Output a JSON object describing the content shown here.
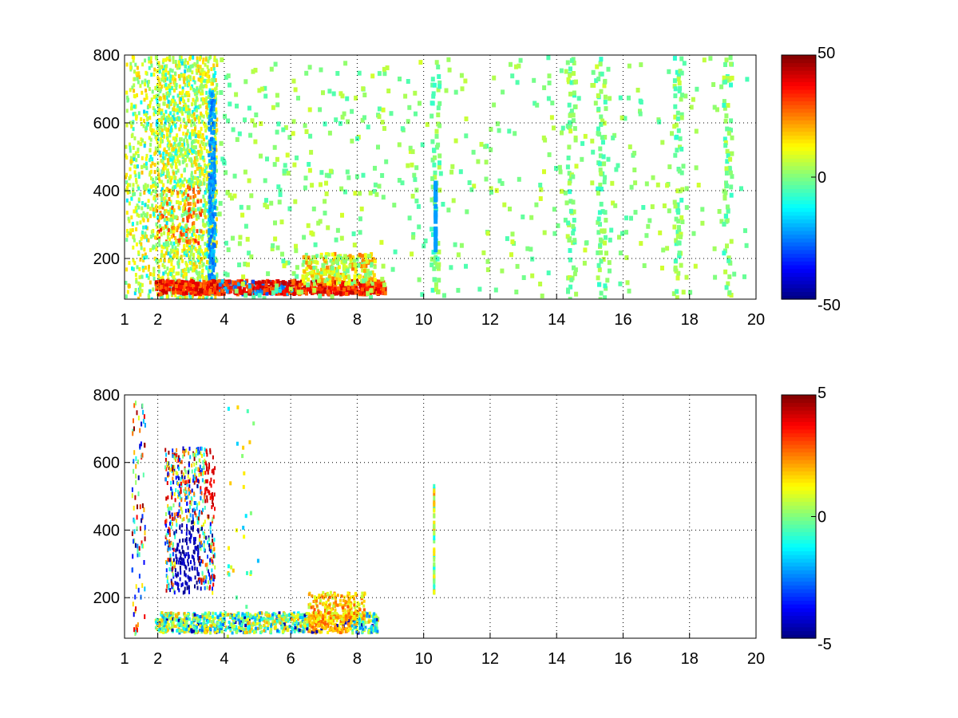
{
  "chart_data": [
    {
      "type": "heatmap",
      "title": "",
      "xlabel": "",
      "ylabel": "",
      "xlim": [
        1,
        20
      ],
      "ylim": [
        80,
        800
      ],
      "x_ticks": [
        1,
        2,
        4,
        6,
        8,
        10,
        12,
        14,
        16,
        18,
        20
      ],
      "x_tick_labels": [
        "1",
        "2",
        "4",
        "6",
        "8",
        "10",
        "12",
        "14",
        "16",
        "18",
        "20"
      ],
      "y_ticks": [
        200,
        400,
        600,
        800
      ],
      "y_tick_labels": [
        "200",
        "400",
        "600",
        "800"
      ],
      "grid": true,
      "colormap": "jet",
      "colorbar": {
        "min": -50,
        "max": 50,
        "ticks": [
          -50,
          0,
          50
        ],
        "tick_labels": [
          "-50",
          "0",
          "50"
        ]
      },
      "features": [
        {
          "description": "strong warm band",
          "x": [
            1.9,
            8.8
          ],
          "y": [
            100,
            160
          ],
          "value": 35
        },
        {
          "description": "dense yellow/orange region",
          "x": [
            1.8,
            3.6
          ],
          "y": [
            250,
            800
          ],
          "value": 15
        },
        {
          "description": "cyan streak",
          "x": [
            3.5,
            3.7
          ],
          "y": [
            100,
            700
          ],
          "value": -20
        },
        {
          "description": "scattered speckles",
          "x": [
            4,
            20
          ],
          "y": [
            80,
            800
          ],
          "value": 3
        }
      ]
    },
    {
      "type": "heatmap",
      "title": "",
      "xlabel": "",
      "ylabel": "",
      "xlim": [
        1,
        20
      ],
      "ylim": [
        80,
        800
      ],
      "x_ticks": [
        1,
        2,
        4,
        6,
        8,
        10,
        12,
        14,
        16,
        18,
        20
      ],
      "x_tick_labels": [
        "1",
        "2",
        "4",
        "6",
        "8",
        "10",
        "12",
        "14",
        "16",
        "18",
        "20"
      ],
      "y_ticks": [
        200,
        400,
        600,
        800
      ],
      "y_tick_labels": [
        "200",
        "400",
        "600",
        "800"
      ],
      "grid": true,
      "colormap": "jet",
      "colorbar": {
        "min": -5,
        "max": 5,
        "ticks": [
          -5,
          0,
          5
        ],
        "tick_labels": [
          "-5",
          "0",
          "5"
        ]
      },
      "features": [
        {
          "description": "mixed band near bottom",
          "x": [
            1.9,
            8.6
          ],
          "y": [
            100,
            220
          ],
          "value": 0
        },
        {
          "description": "blue/orange patch",
          "x": [
            2.2,
            3.6
          ],
          "y": [
            220,
            650
          ],
          "value": -3
        },
        {
          "description": "isolated column near x=10.3",
          "x": [
            10.25,
            10.35
          ],
          "y": [
            210,
            540
          ],
          "value": 1
        }
      ]
    }
  ]
}
